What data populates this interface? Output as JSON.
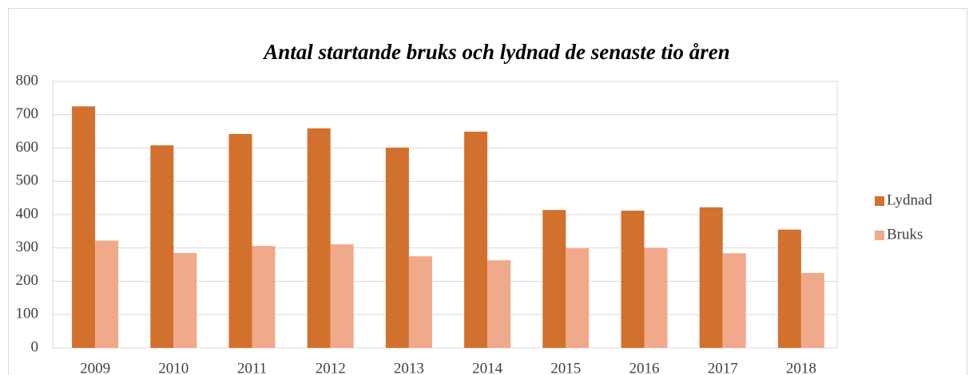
{
  "chart_data": {
    "type": "bar",
    "title": "Antal startande bruks och lydnad de senaste tio åren",
    "categories": [
      "2009",
      "2010",
      "2011",
      "2012",
      "2013",
      "2014",
      "2015",
      "2016",
      "2017",
      "2018"
    ],
    "series": [
      {
        "name": "Lydnad",
        "color": "#d2702d",
        "values": [
          725,
          608,
          642,
          659,
          601,
          649,
          414,
          412,
          422,
          355
        ]
      },
      {
        "name": "Bruks",
        "color": "#f1a98c",
        "values": [
          322,
          285,
          306,
          311,
          275,
          263,
          299,
          300,
          284,
          225
        ]
      }
    ],
    "ylim": [
      0,
      800
    ],
    "yticks": [
      0,
      100,
      200,
      300,
      400,
      500,
      600,
      700,
      800
    ],
    "grid": true,
    "legend": "right"
  }
}
